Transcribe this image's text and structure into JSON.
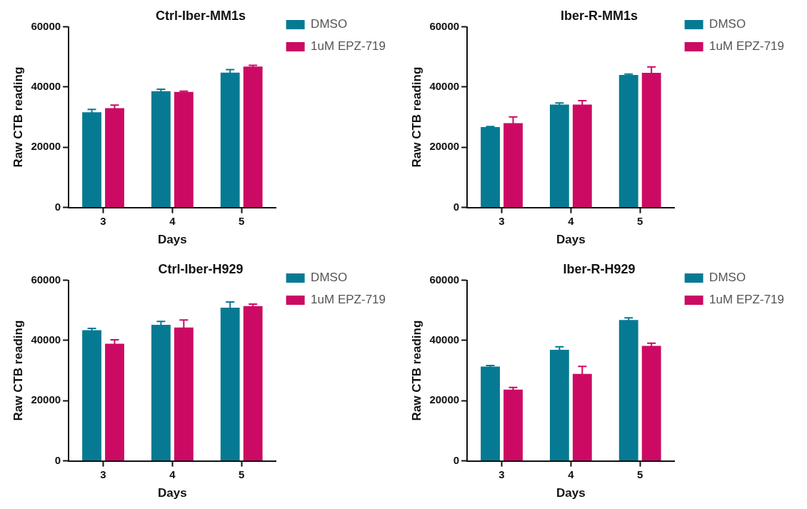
{
  "chart_data": [
    {
      "type": "bar",
      "title": "Ctrl-Iber-MM1s",
      "xlabel": "Days",
      "ylabel": "Raw CTB reading",
      "categories": [
        "3",
        "4",
        "5"
      ],
      "series": [
        {
          "name": "DMSO",
          "color": "#077a93",
          "values": [
            31600,
            38600,
            44800
          ],
          "errors": [
            1000,
            700,
            1000
          ]
        },
        {
          "name": "1uM EPZ-719",
          "color": "#cc0a64",
          "values": [
            33000,
            38400,
            46800
          ],
          "errors": [
            1000,
            200,
            400
          ]
        }
      ],
      "ylim": [
        0,
        60000
      ],
      "yticks": [
        0,
        20000,
        40000,
        60000
      ],
      "legend": "top right"
    },
    {
      "type": "bar",
      "title": "Iber-R-MM1s",
      "xlabel": "Days",
      "ylabel": "Raw CTB reading",
      "categories": [
        "3",
        "4",
        "5"
      ],
      "series": [
        {
          "name": "DMSO",
          "color": "#077a93",
          "values": [
            26700,
            34200,
            44000
          ],
          "errors": [
            200,
            500,
            300
          ]
        },
        {
          "name": "1uM EPZ-719",
          "color": "#cc0a64",
          "values": [
            28000,
            34200,
            44700
          ],
          "errors": [
            2100,
            1300,
            2000
          ]
        }
      ],
      "ylim": [
        0,
        60000
      ],
      "yticks": [
        0,
        20000,
        40000,
        60000
      ],
      "legend": "top right"
    },
    {
      "type": "bar",
      "title": "Ctrl-Iber-H929",
      "xlabel": "Days",
      "ylabel": "Raw CTB reading",
      "categories": [
        "3",
        "4",
        "5"
      ],
      "series": [
        {
          "name": "DMSO",
          "color": "#077a93",
          "values": [
            43400,
            45200,
            50900
          ],
          "errors": [
            600,
            1100,
            1900
          ]
        },
        {
          "name": "1uM EPZ-719",
          "color": "#cc0a64",
          "values": [
            38900,
            44300,
            51400
          ],
          "errors": [
            1300,
            2500,
            700
          ]
        }
      ],
      "ylim": [
        0,
        60000
      ],
      "yticks": [
        0,
        20000,
        40000,
        60000
      ],
      "legend": "top right"
    },
    {
      "type": "bar",
      "title": "Iber-R-H929",
      "xlabel": "Days",
      "ylabel": "Raw CTB reading",
      "categories": [
        "3",
        "4",
        "5"
      ],
      "series": [
        {
          "name": "DMSO",
          "color": "#077a93",
          "values": [
            31300,
            36900,
            46800
          ],
          "errors": [
            400,
            1000,
            700
          ]
        },
        {
          "name": "1uM EPZ-719",
          "color": "#cc0a64",
          "values": [
            23700,
            28900,
            38200
          ],
          "errors": [
            700,
            2500,
            900
          ]
        }
      ],
      "ylim": [
        0,
        60000
      ],
      "yticks": [
        0,
        20000,
        40000,
        60000
      ],
      "legend": "top right"
    }
  ]
}
